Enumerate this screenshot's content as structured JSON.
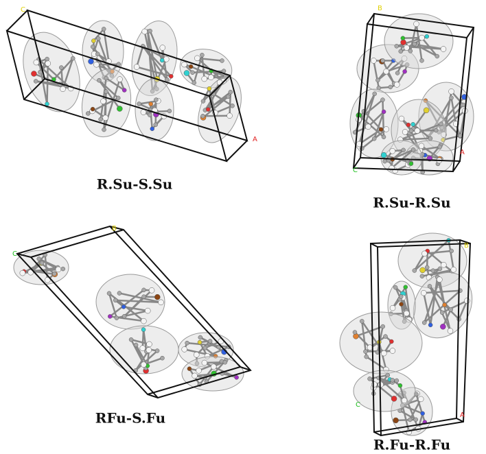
{
  "panels": [
    {
      "caption": "R.Su-S.Su",
      "axis_labels": [
        "C",
        "A"
      ]
    },
    {
      "caption": "R.Su-R.Su",
      "axis_labels": [
        "B",
        "A",
        "C"
      ]
    },
    {
      "caption": "RFu-S.Fu",
      "axis_labels": [
        "C",
        "B"
      ]
    },
    {
      "caption": "R.Fu-R.Fu",
      "axis_labels": [
        "B",
        "C",
        "A"
      ]
    }
  ]
}
